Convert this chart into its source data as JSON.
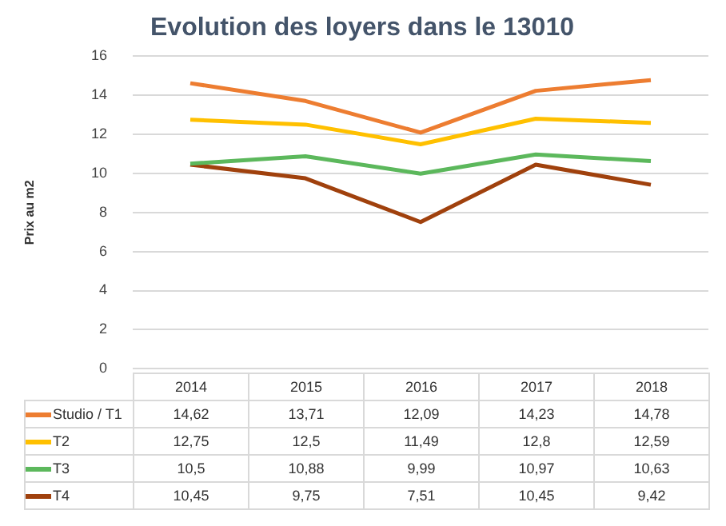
{
  "chart_data": {
    "type": "line",
    "title": "Evolution des loyers dans le 13010",
    "ylabel": "Prix au m2",
    "categories": [
      "2014",
      "2015",
      "2016",
      "2017",
      "2018"
    ],
    "series": [
      {
        "name": "Studio / T1",
        "color": "#ed7d31",
        "values": [
          14.62,
          13.71,
          12.09,
          14.23,
          14.78
        ],
        "value_labels": [
          "14,62",
          "13,71",
          "12,09",
          "14,23",
          "14,78"
        ]
      },
      {
        "name": "T2",
        "color": "#ffc000",
        "values": [
          12.75,
          12.5,
          11.49,
          12.8,
          12.59
        ],
        "value_labels": [
          "12,75",
          "12,5",
          "11,49",
          "12,8",
          "12,59"
        ]
      },
      {
        "name": "T3",
        "color": "#5cb85c",
        "values": [
          10.5,
          10.88,
          9.99,
          10.97,
          10.63
        ],
        "value_labels": [
          "10,5",
          "10,88",
          "9,99",
          "10,97",
          "10,63"
        ]
      },
      {
        "name": "T4",
        "color": "#a0410d",
        "values": [
          10.45,
          9.75,
          7.51,
          10.45,
          9.42
        ],
        "value_labels": [
          "10,45",
          "9,75",
          "7,51",
          "10,45",
          "9,42"
        ]
      }
    ],
    "ylim": [
      0,
      16
    ],
    "yticks": [
      0,
      2,
      4,
      6,
      8,
      10,
      12,
      14,
      16
    ],
    "grid": "y",
    "legend": "bottom",
    "marker": "none",
    "line_style": "solid"
  }
}
